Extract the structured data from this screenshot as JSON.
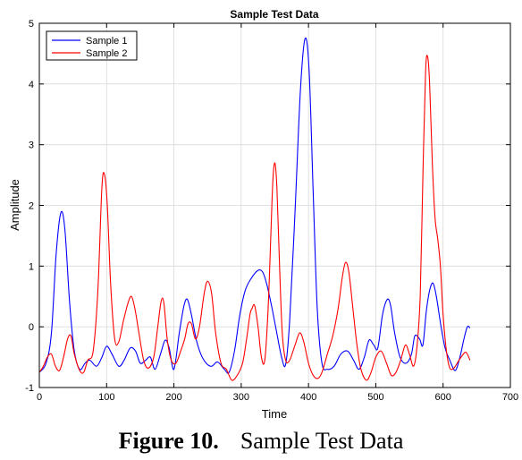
{
  "caption": {
    "figure_label": "Figure 10.",
    "text": "Sample Test Data"
  },
  "chart_data": {
    "type": "line",
    "title": "Sample Test Data",
    "xlabel": "Time",
    "ylabel": "Amplitude",
    "xlim": [
      0,
      700
    ],
    "ylim": [
      -1,
      5
    ],
    "xticks": [
      0,
      100,
      200,
      300,
      400,
      500,
      600,
      700
    ],
    "yticks": [
      -1,
      0,
      1,
      2,
      3,
      4,
      5
    ],
    "grid": true,
    "legend_position": "top-left",
    "series": [
      {
        "name": "Sample 1",
        "color": "#0000ff",
        "points": [
          [
            0,
            -0.75
          ],
          [
            10,
            -0.6
          ],
          [
            18,
            -0.1
          ],
          [
            25,
            1.2
          ],
          [
            32,
            1.88
          ],
          [
            38,
            1.6
          ],
          [
            45,
            0.4
          ],
          [
            52,
            -0.4
          ],
          [
            60,
            -0.7
          ],
          [
            68,
            -0.6
          ],
          [
            75,
            -0.55
          ],
          [
            85,
            -0.65
          ],
          [
            93,
            -0.5
          ],
          [
            100,
            -0.32
          ],
          [
            108,
            -0.45
          ],
          [
            118,
            -0.65
          ],
          [
            126,
            -0.55
          ],
          [
            135,
            -0.35
          ],
          [
            143,
            -0.4
          ],
          [
            150,
            -0.6
          ],
          [
            158,
            -0.55
          ],
          [
            165,
            -0.5
          ],
          [
            172,
            -0.7
          ],
          [
            180,
            -0.45
          ],
          [
            187,
            -0.22
          ],
          [
            193,
            -0.35
          ],
          [
            200,
            -0.7
          ],
          [
            208,
            -0.1
          ],
          [
            215,
            0.35
          ],
          [
            220,
            0.45
          ],
          [
            226,
            0.2
          ],
          [
            233,
            -0.2
          ],
          [
            240,
            -0.45
          ],
          [
            248,
            -0.6
          ],
          [
            256,
            -0.65
          ],
          [
            265,
            -0.58
          ],
          [
            275,
            -0.7
          ],
          [
            282,
            -0.75
          ],
          [
            290,
            -0.4
          ],
          [
            298,
            0.2
          ],
          [
            306,
            0.6
          ],
          [
            315,
            0.8
          ],
          [
            325,
            0.93
          ],
          [
            332,
            0.9
          ],
          [
            338,
            0.7
          ],
          [
            345,
            0.35
          ],
          [
            352,
            -0.05
          ],
          [
            360,
            -0.5
          ],
          [
            366,
            -0.62
          ],
          [
            372,
            0.1
          ],
          [
            380,
            1.9
          ],
          [
            388,
            3.9
          ],
          [
            395,
            4.75
          ],
          [
            401,
            4.2
          ],
          [
            407,
            2.2
          ],
          [
            413,
            0.3
          ],
          [
            420,
            -0.6
          ],
          [
            428,
            -0.7
          ],
          [
            438,
            -0.65
          ],
          [
            448,
            -0.45
          ],
          [
            458,
            -0.4
          ],
          [
            467,
            -0.55
          ],
          [
            475,
            -0.7
          ],
          [
            483,
            -0.5
          ],
          [
            490,
            -0.22
          ],
          [
            497,
            -0.3
          ],
          [
            503,
            -0.35
          ],
          [
            510,
            0.2
          ],
          [
            517,
            0.45
          ],
          [
            522,
            0.35
          ],
          [
            528,
            -0.1
          ],
          [
            536,
            -0.5
          ],
          [
            545,
            -0.6
          ],
          [
            553,
            -0.45
          ],
          [
            558,
            -0.15
          ],
          [
            565,
            -0.2
          ],
          [
            570,
            -0.3
          ],
          [
            575,
            0.25
          ],
          [
            580,
            0.6
          ],
          [
            585,
            0.72
          ],
          [
            590,
            0.5
          ],
          [
            597,
            0.0
          ],
          [
            603,
            -0.35
          ],
          [
            610,
            -0.55
          ],
          [
            618,
            -0.72
          ],
          [
            625,
            -0.5
          ],
          [
            631,
            -0.2
          ],
          [
            636,
            0.0
          ],
          [
            640,
            -0.02
          ]
        ]
      },
      {
        "name": "Sample 2",
        "color": "#ff0000",
        "points": [
          [
            0,
            -0.75
          ],
          [
            6,
            -0.65
          ],
          [
            12,
            -0.5
          ],
          [
            18,
            -0.45
          ],
          [
            24,
            -0.65
          ],
          [
            30,
            -0.72
          ],
          [
            36,
            -0.5
          ],
          [
            42,
            -0.2
          ],
          [
            47,
            -0.15
          ],
          [
            52,
            -0.45
          ],
          [
            60,
            -0.72
          ],
          [
            66,
            -0.75
          ],
          [
            72,
            -0.55
          ],
          [
            80,
            -0.4
          ],
          [
            87,
            0.6
          ],
          [
            93,
            2.3
          ],
          [
            97,
            2.5
          ],
          [
            101,
            2.0
          ],
          [
            106,
            0.7
          ],
          [
            112,
            -0.2
          ],
          [
            118,
            -0.25
          ],
          [
            125,
            0.1
          ],
          [
            132,
            0.4
          ],
          [
            137,
            0.5
          ],
          [
            142,
            0.3
          ],
          [
            148,
            -0.1
          ],
          [
            155,
            -0.55
          ],
          [
            162,
            -0.68
          ],
          [
            170,
            -0.5
          ],
          [
            176,
            0.0
          ],
          [
            181,
            0.42
          ],
          [
            185,
            0.4
          ],
          [
            190,
            -0.2
          ],
          [
            196,
            -0.55
          ],
          [
            203,
            -0.6
          ],
          [
            210,
            -0.4
          ],
          [
            216,
            -0.2
          ],
          [
            221,
            0.05
          ],
          [
            226,
            0.05
          ],
          [
            232,
            -0.2
          ],
          [
            238,
            0.0
          ],
          [
            245,
            0.55
          ],
          [
            250,
            0.75
          ],
          [
            256,
            0.55
          ],
          [
            262,
            -0.1
          ],
          [
            270,
            -0.6
          ],
          [
            278,
            -0.7
          ],
          [
            286,
            -0.88
          ],
          [
            294,
            -0.8
          ],
          [
            302,
            -0.6
          ],
          [
            308,
            -0.2
          ],
          [
            313,
            0.2
          ],
          [
            316,
            0.3
          ],
          [
            320,
            0.35
          ],
          [
            325,
            0.0
          ],
          [
            330,
            -0.5
          ],
          [
            335,
            -0.55
          ],
          [
            340,
            0.3
          ],
          [
            344,
            1.5
          ],
          [
            347,
            2.4
          ],
          [
            350,
            2.7
          ],
          [
            353,
            2.3
          ],
          [
            357,
            1.0
          ],
          [
            361,
            -0.1
          ],
          [
            366,
            -0.55
          ],
          [
            372,
            -0.55
          ],
          [
            380,
            -0.3
          ],
          [
            387,
            -0.1
          ],
          [
            393,
            -0.25
          ],
          [
            400,
            -0.6
          ],
          [
            407,
            -0.8
          ],
          [
            414,
            -0.85
          ],
          [
            420,
            -0.75
          ],
          [
            428,
            -0.45
          ],
          [
            436,
            -0.15
          ],
          [
            444,
            0.3
          ],
          [
            450,
            0.8
          ],
          [
            455,
            1.06
          ],
          [
            460,
            0.9
          ],
          [
            466,
            0.3
          ],
          [
            472,
            -0.3
          ],
          [
            478,
            -0.7
          ],
          [
            486,
            -0.88
          ],
          [
            493,
            -0.75
          ],
          [
            500,
            -0.5
          ],
          [
            508,
            -0.4
          ],
          [
            516,
            -0.6
          ],
          [
            523,
            -0.8
          ],
          [
            530,
            -0.75
          ],
          [
            537,
            -0.55
          ],
          [
            544,
            -0.3
          ],
          [
            550,
            -0.45
          ],
          [
            556,
            -0.65
          ],
          [
            561,
            -0.35
          ],
          [
            566,
            0.5
          ],
          [
            570,
            2.5
          ],
          [
            574,
            4.2
          ],
          [
            577,
            4.45
          ],
          [
            580,
            4.0
          ],
          [
            584,
            2.7
          ],
          [
            588,
            1.8
          ],
          [
            592,
            1.45
          ],
          [
            596,
            1.0
          ],
          [
            600,
            0.2
          ],
          [
            605,
            -0.4
          ],
          [
            610,
            -0.68
          ],
          [
            616,
            -0.68
          ],
          [
            622,
            -0.58
          ],
          [
            628,
            -0.48
          ],
          [
            634,
            -0.42
          ],
          [
            640,
            -0.55
          ]
        ]
      }
    ]
  }
}
